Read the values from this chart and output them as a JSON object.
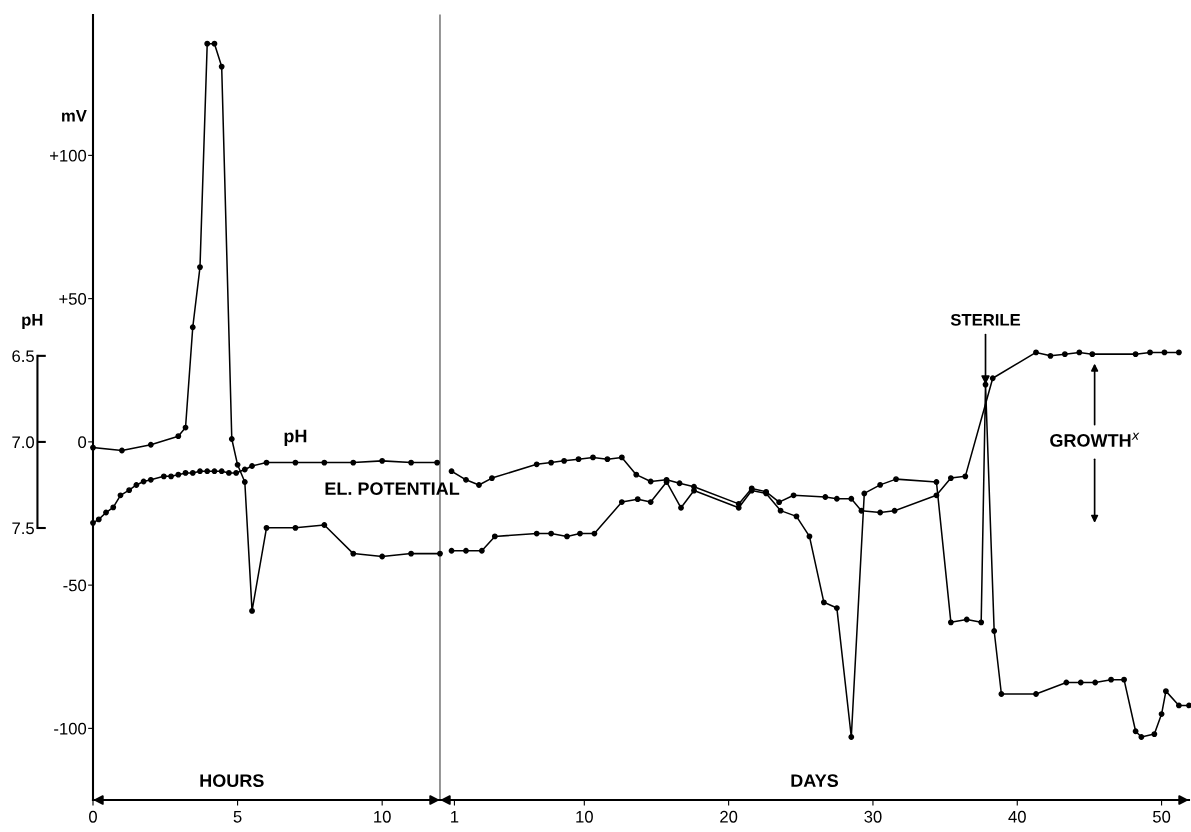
{
  "chart_data": [
    {
      "type": "line",
      "xlabel": "HOURS",
      "ylabel": "mV",
      "y2label": "pH",
      "marker": "circle",
      "line_style": "solid",
      "xlim": [
        0,
        12
      ],
      "xticks": [
        0,
        5,
        10
      ],
      "ylim": [
        -125,
        149
      ],
      "yticks": [
        {
          "value": 100,
          "label": "+100"
        },
        {
          "value": 50,
          "label": "+50"
        },
        0,
        {
          "value": -50,
          "label": "-50"
        },
        {
          "value": -100,
          "label": "-100"
        }
      ],
      "y2lim": [
        9.08,
        4.52
      ],
      "y2ticks": [
        {
          "value": 6.5,
          "label": "6.5"
        },
        {
          "value": 7.0,
          "label": "7.0"
        },
        {
          "value": 7.5,
          "label": "7.5"
        }
      ],
      "series": [
        {
          "name": "pH",
          "color": "#000000",
          "axis": "y2",
          "x": [
            0,
            0.2,
            0.45,
            0.7,
            0.95,
            1.25,
            1.5,
            1.75,
            2,
            2.45,
            2.7,
            2.95,
            3.2,
            3.45,
            3.7,
            3.95,
            4.2,
            4.45,
            4.7,
            4.95,
            5.25,
            5.5,
            6,
            7,
            8,
            9,
            10,
            11,
            11.9
          ],
          "values": [
            7.47,
            7.45,
            7.41,
            7.38,
            7.31,
            7.28,
            7.25,
            7.23,
            7.22,
            7.2,
            7.2,
            7.19,
            7.18,
            7.18,
            7.17,
            7.17,
            7.17,
            7.17,
            7.18,
            7.18,
            7.16,
            7.14,
            7.12,
            7.12,
            7.12,
            7.12,
            7.11,
            7.12,
            7.12
          ]
        },
        {
          "name": "EL. POTENTIAL",
          "color": "#000000",
          "x": [
            0,
            1,
            2,
            2.95,
            3.2,
            3.45,
            3.7,
            3.95,
            4.2,
            4.45,
            4.8,
            5,
            5.25,
            5.5,
            6,
            7,
            8,
            9,
            10,
            11,
            12
          ],
          "values": [
            -2,
            -3,
            -1,
            2,
            5,
            40,
            61,
            139,
            139,
            131,
            1,
            -8,
            -14,
            -59,
            -30,
            -30,
            -29,
            -39,
            -40,
            -39,
            -39
          ]
        }
      ]
    },
    {
      "type": "line",
      "xlabel": "DAYS",
      "marker": "circle",
      "line_style": "solid",
      "tick_labels": "x",
      "xlim": [
        0,
        51.9
      ],
      "xticks": [
        1,
        10,
        20,
        30,
        40,
        50
      ],
      "ylim": [
        -125,
        149
      ],
      "y2lim": [
        9.08,
        4.52
      ],
      "annotations": [
        {
          "text": "STERILE",
          "x": 37.8,
          "y": 20
        },
        "GROWTH$^{x}$"
      ],
      "series": [
        {
          "color": "#000000",
          "axis": "y2",
          "x": [
            0.8,
            1.8,
            2.7,
            3.6,
            6.7,
            7.7,
            8.6,
            9.6,
            10.6,
            11.6,
            12.6,
            13.6,
            14.6,
            15.7,
            16.6,
            17.6,
            20.7,
            21.6,
            22.6,
            23.5,
            24.5,
            26.7,
            27.5,
            28.5,
            29.2,
            30.5,
            31.5,
            34.4,
            35.4,
            36.4,
            38.3,
            41.3,
            42.3,
            43.3,
            44.3,
            45.2,
            48.2,
            49.2,
            50.2,
            51.2
          ],
          "values": [
            7.17,
            7.22,
            7.25,
            7.21,
            7.13,
            7.12,
            7.11,
            7.1,
            7.09,
            7.1,
            7.09,
            7.19,
            7.23,
            7.22,
            7.24,
            7.26,
            7.36,
            7.27,
            7.29,
            7.35,
            7.31,
            7.32,
            7.33,
            7.33,
            7.4,
            7.41,
            7.4,
            7.31,
            7.21,
            7.2,
            6.63,
            6.48,
            6.5,
            6.49,
            6.48,
            6.49,
            6.49,
            6.48,
            6.48,
            6.48
          ]
        },
        {
          "color": "#000000",
          "x": [
            0.8,
            1.8,
            2.9,
            3.8,
            6.7,
            7.7,
            8.8,
            9.7,
            10.7,
            12.6,
            13.7,
            14.6,
            15.7,
            16.7,
            17.6,
            20.7,
            21.6,
            22.6,
            23.6,
            24.7,
            25.6,
            26.6,
            27.5,
            28.5,
            29.4,
            30.5,
            31.6,
            34.4,
            35.4,
            36.5,
            37.5,
            37.8,
            38.4,
            38.9,
            41.3,
            43.4,
            44.4,
            45.4,
            46.5,
            47.4,
            48.2,
            48.6,
            49.5,
            50.0,
            50.3,
            51.2,
            51.9
          ],
          "values": [
            -38,
            -38,
            -38,
            -33,
            -32,
            -32,
            -33,
            -32,
            -32,
            -21,
            -20,
            -21,
            -14,
            -23,
            -17,
            -23,
            -17,
            -18,
            -24,
            -26,
            -33,
            -56,
            -58,
            -103,
            -18,
            -15,
            -13,
            -14,
            -63,
            -62,
            -63,
            20,
            -66,
            -88,
            -88,
            -84,
            -84,
            -84,
            -83,
            -83,
            -101,
            -103,
            -102,
            -95,
            -87,
            -92,
            -92
          ]
        }
      ]
    }
  ]
}
